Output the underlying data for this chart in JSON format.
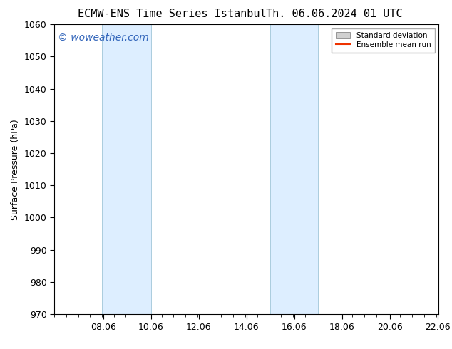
{
  "title_left": "ECMW-ENS Time Series Istanbul",
  "title_right": "Th. 06.06.2024 01 UTC",
  "ylabel": "Surface Pressure (hPa)",
  "xlim_start": 6.0,
  "xlim_end": 22.1,
  "ylim_bottom": 970,
  "ylim_top": 1060,
  "yticks": [
    970,
    980,
    990,
    1000,
    1010,
    1020,
    1030,
    1040,
    1050,
    1060
  ],
  "xtick_labels": [
    "08.06",
    "10.06",
    "12.06",
    "14.06",
    "16.06",
    "18.06",
    "20.06",
    "22.06"
  ],
  "xtick_positions": [
    8.06,
    10.06,
    12.06,
    14.06,
    16.06,
    18.06,
    20.06,
    22.06
  ],
  "shaded_bands": [
    {
      "x_start": 8.0,
      "x_end": 10.06
    },
    {
      "x_start": 15.06,
      "x_end": 17.06
    }
  ],
  "shaded_color": "#ddeeff",
  "band_edge_color": "#aaccdd",
  "watermark_text": "© woweather.com",
  "watermark_color": "#3366bb",
  "legend_std_label": "Standard deviation",
  "legend_mean_label": "Ensemble mean run",
  "legend_std_color": "#d0d0d0",
  "legend_mean_color": "#ee3300",
  "bg_color": "#ffffff",
  "plot_bg_color": "#ffffff",
  "title_fontsize": 11,
  "axis_fontsize": 9,
  "tick_fontsize": 9,
  "watermark_fontsize": 10
}
